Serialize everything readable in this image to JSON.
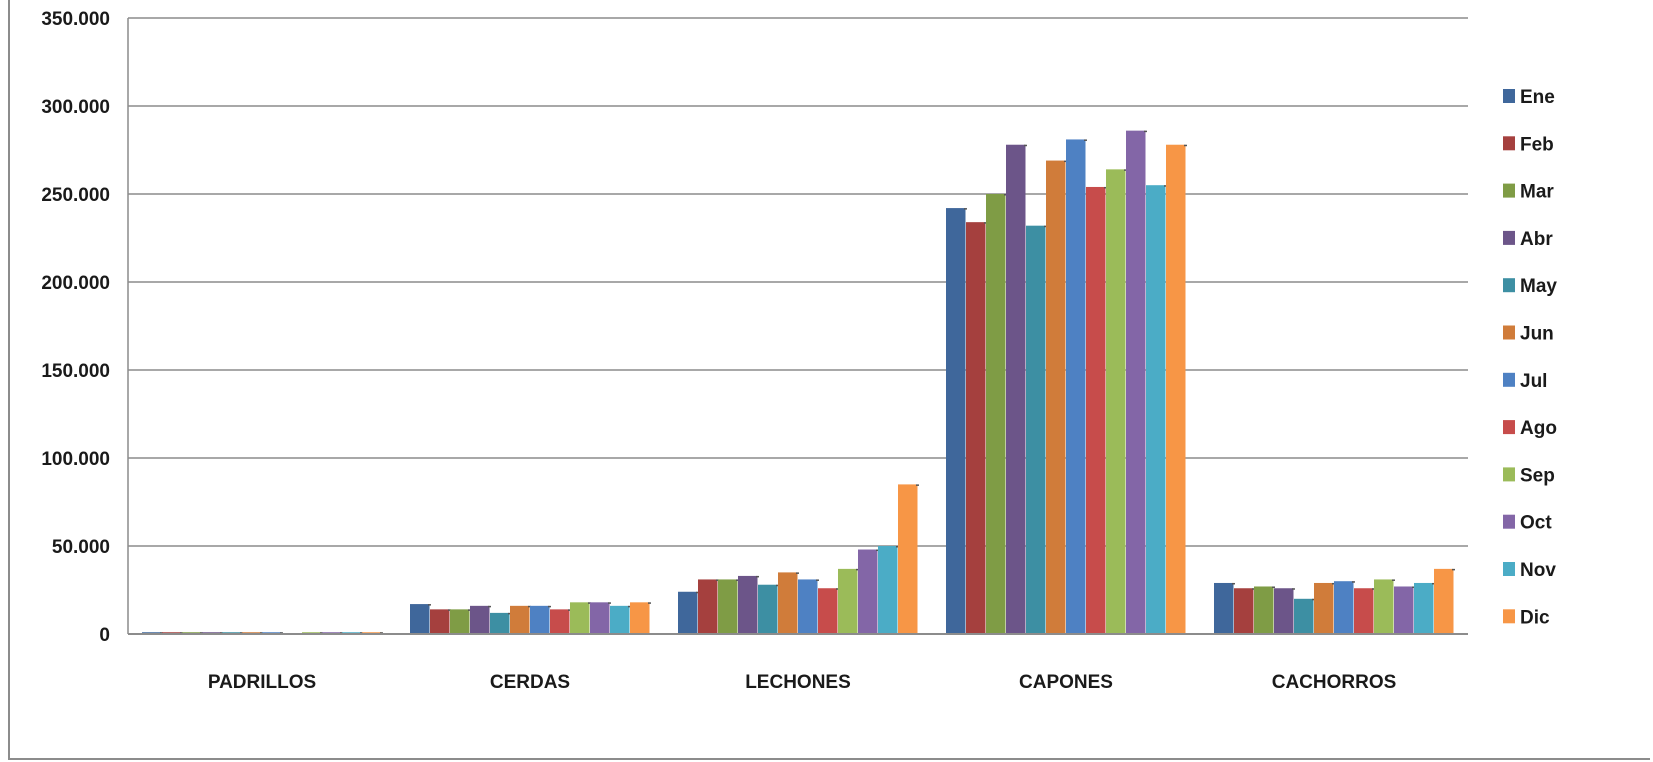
{
  "chart_data": {
    "type": "bar",
    "categories": [
      "PADRILLOS",
      "CERDAS",
      "LECHONES",
      "CAPONES",
      "CACHORROS"
    ],
    "ylim": [
      0,
      350000
    ],
    "y_ticks": [
      0,
      50000,
      100000,
      150000,
      200000,
      250000,
      300000,
      350000
    ],
    "y_tick_labels": [
      "0",
      "50.000",
      "100.000",
      "150.000",
      "200.000",
      "250.000",
      "300.000",
      "350.000"
    ],
    "grid": true,
    "legend_position": "right",
    "series": [
      {
        "name": "Ene",
        "color": "#3f679b",
        "values": [
          1000,
          17000,
          24000,
          242000,
          29000
        ]
      },
      {
        "name": "Feb",
        "color": "#a5403e",
        "values": [
          1000,
          14000,
          31000,
          234000,
          26000
        ]
      },
      {
        "name": "Mar",
        "color": "#7f9c45",
        "values": [
          1000,
          14000,
          31000,
          250000,
          27000
        ]
      },
      {
        "name": "Abr",
        "color": "#6c5589",
        "values": [
          1000,
          16000,
          33000,
          278000,
          26000
        ]
      },
      {
        "name": "May",
        "color": "#3d8fa3",
        "values": [
          1000,
          12000,
          28000,
          232000,
          20000
        ]
      },
      {
        "name": "Jun",
        "color": "#d07c3a",
        "values": [
          1000,
          16000,
          35000,
          269000,
          29000
        ]
      },
      {
        "name": "Jul",
        "color": "#4e81c3",
        "values": [
          1000,
          16000,
          31000,
          281000,
          30000
        ]
      },
      {
        "name": "Ago",
        "color": "#c74c4b",
        "values": [
          0,
          14000,
          26000,
          254000,
          26000
        ]
      },
      {
        "name": "Sep",
        "color": "#9bbb59",
        "values": [
          1000,
          18000,
          37000,
          264000,
          31000
        ]
      },
      {
        "name": "Oct",
        "color": "#8366a7",
        "values": [
          1000,
          18000,
          48000,
          286000,
          27000
        ]
      },
      {
        "name": "Nov",
        "color": "#4bacc6",
        "values": [
          1000,
          16000,
          50000,
          255000,
          29000
        ]
      },
      {
        "name": "Dic",
        "color": "#f79646",
        "values": [
          1000,
          18000,
          85000,
          278000,
          37000
        ]
      }
    ]
  }
}
